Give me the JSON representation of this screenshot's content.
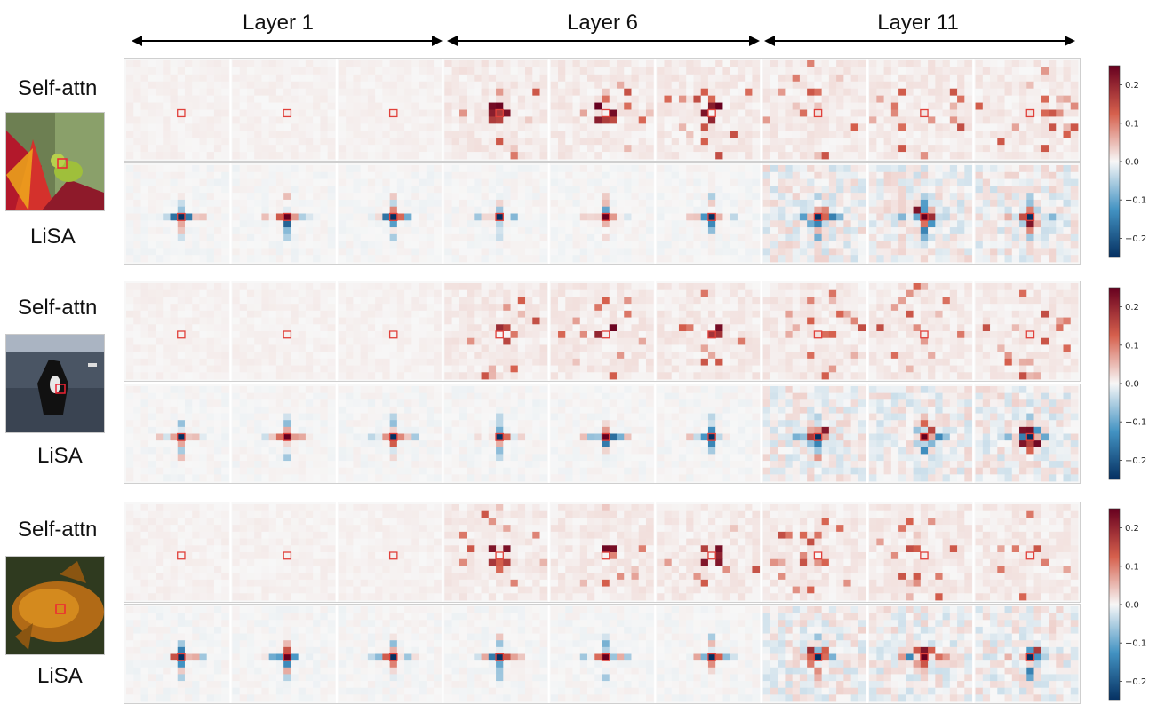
{
  "columns": [
    {
      "label": "Layer 1"
    },
    {
      "label": "Layer 6"
    },
    {
      "label": "Layer 11"
    }
  ],
  "row_labels": {
    "self_attn": "Self-attn",
    "lisa": "LiSA"
  },
  "colorbar": {
    "ticks": [
      "0.2",
      "0.1",
      "0.0",
      "−0.1",
      "−0.2"
    ],
    "min": -0.25,
    "max": 0.25,
    "colors": {
      "pos": "#67001f",
      "mid": "#f7f7f7",
      "neg": "#053061"
    }
  },
  "examples": [
    {
      "image": "frog-on-flower"
    },
    {
      "image": "orca-whale"
    },
    {
      "image": "goldfish"
    }
  ]
}
